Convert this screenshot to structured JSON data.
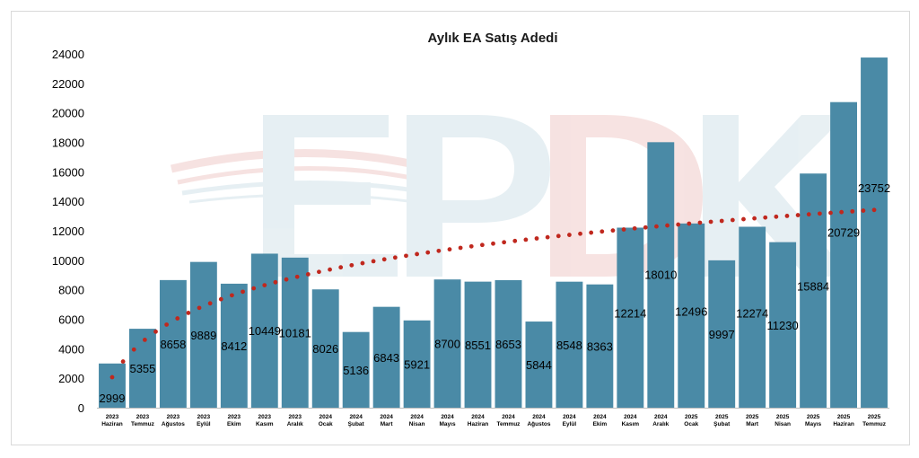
{
  "chart_data": {
    "type": "bar",
    "title": "Aylık EA Satış Adedi",
    "xlabel": "",
    "ylabel": "",
    "ylim": [
      0,
      24000
    ],
    "yticks": [
      0,
      2000,
      4000,
      6000,
      8000,
      10000,
      12000,
      14000,
      16000,
      18000,
      20000,
      22000,
      24000
    ],
    "categories": [
      {
        "year": "2023",
        "month": "Haziran"
      },
      {
        "year": "2023",
        "month": "Temmuz"
      },
      {
        "year": "2023",
        "month": "Ağustos"
      },
      {
        "year": "2023",
        "month": "Eylül"
      },
      {
        "year": "2023",
        "month": "Ekim"
      },
      {
        "year": "2023",
        "month": "Kasım"
      },
      {
        "year": "2023",
        "month": "Aralık"
      },
      {
        "year": "2024",
        "month": "Ocak"
      },
      {
        "year": "2024",
        "month": "Şubat"
      },
      {
        "year": "2024",
        "month": "Mart"
      },
      {
        "year": "2024",
        "month": "Nisan"
      },
      {
        "year": "2024",
        "month": "Mayıs"
      },
      {
        "year": "2024",
        "month": "Haziran"
      },
      {
        "year": "2024",
        "month": "Temmuz"
      },
      {
        "year": "2024",
        "month": "Ağustos"
      },
      {
        "year": "2024",
        "month": "Eylül"
      },
      {
        "year": "2024",
        "month": "Ekim"
      },
      {
        "year": "2024",
        "month": "Kasım"
      },
      {
        "year": "2024",
        "month": "Aralık"
      },
      {
        "year": "2025",
        "month": "Ocak"
      },
      {
        "year": "2025",
        "month": "Şubat"
      },
      {
        "year": "2025",
        "month": "Mart"
      },
      {
        "year": "2025",
        "month": "Nisan"
      },
      {
        "year": "2025",
        "month": "Mayıs"
      },
      {
        "year": "2025",
        "month": "Haziran"
      },
      {
        "year": "2025",
        "month": "Temmuz"
      }
    ],
    "values": [
      2999,
      5355,
      8658,
      9889,
      8412,
      10449,
      10181,
      8026,
      5136,
      6843,
      5921,
      8700,
      8551,
      8653,
      5844,
      8548,
      8363,
      12214,
      18010,
      12496,
      9997,
      12274,
      11230,
      15884,
      20729,
      23752
    ],
    "trendline": {
      "type": "logarithmic",
      "style": "dotted"
    },
    "grid": false,
    "legend": "none",
    "colors": {
      "bar": "#4a8aa6",
      "trend": "#c0281e",
      "axis": "#bfbfbf"
    },
    "watermark": "EPDK logo"
  }
}
